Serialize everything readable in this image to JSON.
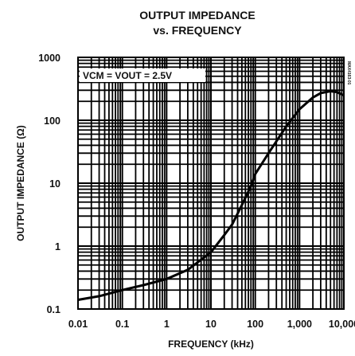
{
  "chart_data": {
    "type": "line",
    "title": "OUTPUT IMPEDANCE",
    "subtitle": "vs. FREQUENCY",
    "xlabel": "FREQUENCY (kHz)",
    "ylabel": "OUTPUT IMPEDANCE (Ω)",
    "x_scale": "log",
    "y_scale": "log",
    "xlim": [
      0.01,
      10000
    ],
    "ylim": [
      0.1,
      1000
    ],
    "x_ticks": [
      "0.01",
      "0.1",
      "1",
      "10",
      "100",
      "1,000",
      "10,000"
    ],
    "y_ticks": [
      "0.1",
      "1",
      "10",
      "100",
      "1000"
    ],
    "grid": true,
    "annotation": "VCM = VOUT = 2.5V",
    "side_id": "MAX4163-01",
    "series": [
      {
        "x": [
          0.01,
          0.03,
          0.1,
          0.3,
          1,
          3,
          10,
          20,
          30,
          50,
          80,
          100,
          200,
          500,
          1000,
          2000,
          3000,
          5000,
          7000,
          10000
        ],
        "y": [
          0.14,
          0.16,
          0.2,
          0.24,
          0.3,
          0.42,
          0.8,
          1.5,
          2.2,
          4.5,
          9,
          14,
          30,
          80,
          150,
          230,
          270,
          290,
          280,
          250
        ]
      }
    ]
  }
}
